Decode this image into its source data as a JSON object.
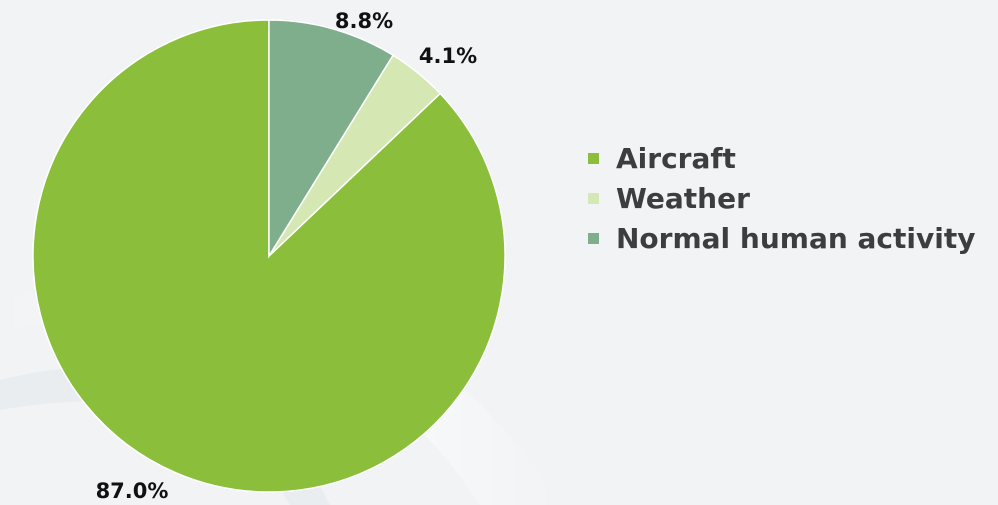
{
  "chart_data": {
    "type": "pie",
    "categories": [
      "Aircraft",
      "Weather",
      "Normal human activity"
    ],
    "values": [
      87.0,
      4.1,
      8.8
    ],
    "labels": [
      "87.0%",
      "4.1%",
      "8.8%"
    ],
    "colors": [
      "#8bbf3b",
      "#d5e8b4",
      "#7fae8d"
    ],
    "start_angle_deg": 0,
    "direction": "counterclockwise",
    "legend_position": "right"
  }
}
